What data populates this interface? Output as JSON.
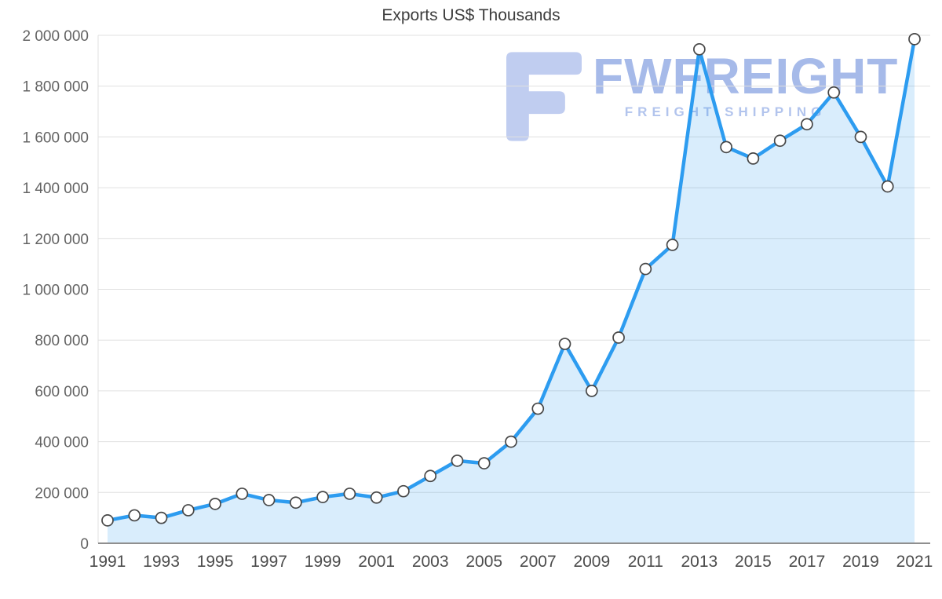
{
  "title": "Exports US$ Thousands",
  "watermark": {
    "brand": "FWFREIGHT",
    "subtitle": "FREIGHT SHIPPING",
    "logo_color": "#b6c5ee",
    "text_color": "#97aee6"
  },
  "chart_data": {
    "type": "area",
    "title": "Exports US$ Thousands",
    "x": [
      1991,
      1992,
      1993,
      1994,
      1995,
      1996,
      1997,
      1998,
      1999,
      2000,
      2001,
      2002,
      2003,
      2004,
      2005,
      2006,
      2007,
      2008,
      2009,
      2010,
      2011,
      2012,
      2013,
      2014,
      2015,
      2016,
      2017,
      2018,
      2019,
      2020,
      2021
    ],
    "values": [
      90000,
      110000,
      100000,
      130000,
      155000,
      195000,
      170000,
      160000,
      182000,
      195000,
      180000,
      205000,
      265000,
      325000,
      315000,
      400000,
      530000,
      785000,
      600000,
      810000,
      1080000,
      1175000,
      1945000,
      1560000,
      1515000,
      1585000,
      1650000,
      1775000,
      1600000,
      1405000,
      1985000
    ],
    "ylim": [
      0,
      2000000
    ],
    "y_tick_step": 200000,
    "y_tick_labels": [
      "0",
      "200 000",
      "400 000",
      "600 000",
      "800 000",
      "1 000 000",
      "1 200 000",
      "1 400 000",
      "1 600 000",
      "1 800 000",
      "2 000 000"
    ],
    "x_tick_labels": [
      "1991",
      "1993",
      "1995",
      "1997",
      "1999",
      "2001",
      "2003",
      "2005",
      "2007",
      "2009",
      "2011",
      "2013",
      "2015",
      "2017",
      "2019",
      "2021"
    ],
    "grid": true,
    "legend": "none",
    "line_color": "#2d9cf0",
    "area_color": "#2d9cf0",
    "area_opacity": 0.18,
    "grid_color": "#e0e0e0",
    "axis_color": "#8f8f8f",
    "marker_fill": "#ffffff",
    "marker_stroke": "#474747"
  }
}
